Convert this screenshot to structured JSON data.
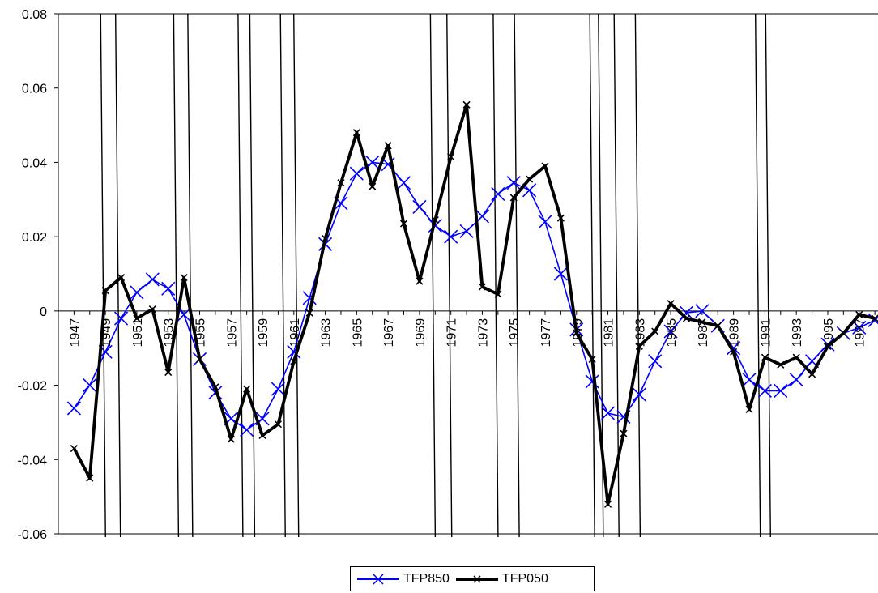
{
  "chart_data": {
    "type": "line",
    "title": "",
    "xlabel": "",
    "ylabel": "",
    "ylim": [
      -0.06,
      0.08
    ],
    "yticks": [
      "0.08",
      "0.06",
      "0.04",
      "0.02",
      "0",
      "-0.02",
      "-0.04",
      "-0.06"
    ],
    "x_tick_labels": [
      "1947",
      "1949",
      "1951",
      "1953",
      "1955",
      "1957",
      "1959",
      "1961",
      "1963",
      "1965",
      "1967",
      "1969",
      "1971",
      "1973",
      "1975",
      "1977",
      "1979",
      "1981",
      "1983",
      "1985",
      "1987",
      "1989",
      "1991",
      "1993",
      "1995",
      "1997"
    ],
    "grid": false,
    "legend_position": "bottom",
    "recession_bars": [
      [
        1948.85,
        1949.8
      ],
      [
        1953.5,
        1954.4
      ],
      [
        1957.6,
        1958.35
      ],
      [
        1960.3,
        1961.15
      ],
      [
        1969.85,
        1970.9
      ],
      [
        1973.85,
        1975.2
      ],
      [
        1980.0,
        1980.55
      ],
      [
        1981.55,
        1982.9
      ],
      [
        1990.55,
        1991.2
      ]
    ],
    "series": [
      {
        "name": "TFP850",
        "color": "#0000ff",
        "marker": "x",
        "values": [
          [
            1947.0,
            -0.0262
          ],
          [
            1948.0,
            -0.02
          ],
          [
            1949.0,
            -0.011
          ],
          [
            1950.0,
            -0.002
          ],
          [
            1951.0,
            0.005
          ],
          [
            1952.0,
            0.0085
          ],
          [
            1953.0,
            0.006
          ],
          [
            1954.0,
            -0.001
          ],
          [
            1955.0,
            -0.013
          ],
          [
            1956.0,
            -0.022
          ],
          [
            1957.0,
            -0.029
          ],
          [
            1958.0,
            -0.032
          ],
          [
            1959.0,
            -0.029
          ],
          [
            1960.0,
            -0.021
          ],
          [
            1961.0,
            -0.011
          ],
          [
            1962.0,
            0.0035
          ],
          [
            1963.0,
            0.018
          ],
          [
            1964.0,
            0.029
          ],
          [
            1965.0,
            0.037
          ],
          [
            1966.0,
            0.04
          ],
          [
            1967.0,
            0.0395
          ],
          [
            1968.0,
            0.0345
          ],
          [
            1969.0,
            0.028
          ],
          [
            1970.0,
            0.023
          ],
          [
            1971.0,
            0.02
          ],
          [
            1972.0,
            0.0215
          ],
          [
            1973.0,
            0.0255
          ],
          [
            1974.0,
            0.0315
          ],
          [
            1975.0,
            0.0345
          ],
          [
            1976.0,
            0.0325
          ],
          [
            1977.0,
            0.024
          ],
          [
            1978.0,
            0.01
          ],
          [
            1979.0,
            -0.005
          ],
          [
            1980.0,
            -0.019
          ],
          [
            1981.0,
            -0.0275
          ],
          [
            1982.0,
            -0.0285
          ],
          [
            1983.0,
            -0.0225
          ],
          [
            1984.0,
            -0.0135
          ],
          [
            1985.0,
            -0.0055
          ],
          [
            1986.0,
            -0.0005
          ],
          [
            1987.0,
            0.0
          ],
          [
            1988.0,
            -0.004
          ],
          [
            1989.0,
            -0.01
          ],
          [
            1990.0,
            -0.0185
          ],
          [
            1991.0,
            -0.0215
          ],
          [
            1992.0,
            -0.0215
          ],
          [
            1993.0,
            -0.0185
          ],
          [
            1994.0,
            -0.0135
          ],
          [
            1995.0,
            -0.009
          ],
          [
            1996.0,
            -0.006
          ],
          [
            1997.0,
            -0.0045
          ],
          [
            1998.0,
            -0.0025
          ]
        ]
      },
      {
        "name": "TFP050",
        "color": "#000000",
        "marker": "x",
        "values": [
          [
            1947.0,
            -0.037
          ],
          [
            1948.0,
            -0.045
          ],
          [
            1949.0,
            0.0055
          ],
          [
            1950.0,
            0.009
          ],
          [
            1951.0,
            -0.002
          ],
          [
            1952.0,
            0.0005
          ],
          [
            1953.0,
            -0.0165
          ],
          [
            1954.0,
            0.009
          ],
          [
            1955.0,
            -0.013
          ],
          [
            1956.0,
            -0.0205
          ],
          [
            1957.0,
            -0.0345
          ],
          [
            1958.0,
            -0.021
          ],
          [
            1959.0,
            -0.0335
          ],
          [
            1960.0,
            -0.0305
          ],
          [
            1961.0,
            -0.0135
          ],
          [
            1962.0,
            -0.0005
          ],
          [
            1963.0,
            0.0195
          ],
          [
            1964.0,
            0.0345
          ],
          [
            1965.0,
            0.048
          ],
          [
            1966.0,
            0.0335
          ],
          [
            1967.0,
            0.0445
          ],
          [
            1968.0,
            0.0235
          ],
          [
            1969.0,
            0.008
          ],
          [
            1970.0,
            0.0245
          ],
          [
            1971.0,
            0.0415
          ],
          [
            1972.0,
            0.0555
          ],
          [
            1973.0,
            0.0065
          ],
          [
            1974.0,
            0.0045
          ],
          [
            1975.0,
            0.0305
          ],
          [
            1976.0,
            0.0355
          ],
          [
            1977.0,
            0.039
          ],
          [
            1978.0,
            0.025
          ],
          [
            1979.0,
            -0.006
          ],
          [
            1980.0,
            -0.013
          ],
          [
            1981.0,
            -0.052
          ],
          [
            1982.0,
            -0.033
          ],
          [
            1983.0,
            -0.0095
          ],
          [
            1984.0,
            -0.0055
          ],
          [
            1985.0,
            0.002
          ],
          [
            1986.0,
            -0.002
          ],
          [
            1987.0,
            -0.003
          ],
          [
            1988.0,
            -0.004
          ],
          [
            1989.0,
            -0.011
          ],
          [
            1990.0,
            -0.0265
          ],
          [
            1991.0,
            -0.0125
          ],
          [
            1992.0,
            -0.0145
          ],
          [
            1993.0,
            -0.0125
          ],
          [
            1994.0,
            -0.017
          ],
          [
            1995.0,
            -0.0095
          ],
          [
            1996.0,
            -0.006
          ],
          [
            1997.0,
            -0.001
          ],
          [
            1998.0,
            -0.002
          ]
        ]
      }
    ]
  }
}
